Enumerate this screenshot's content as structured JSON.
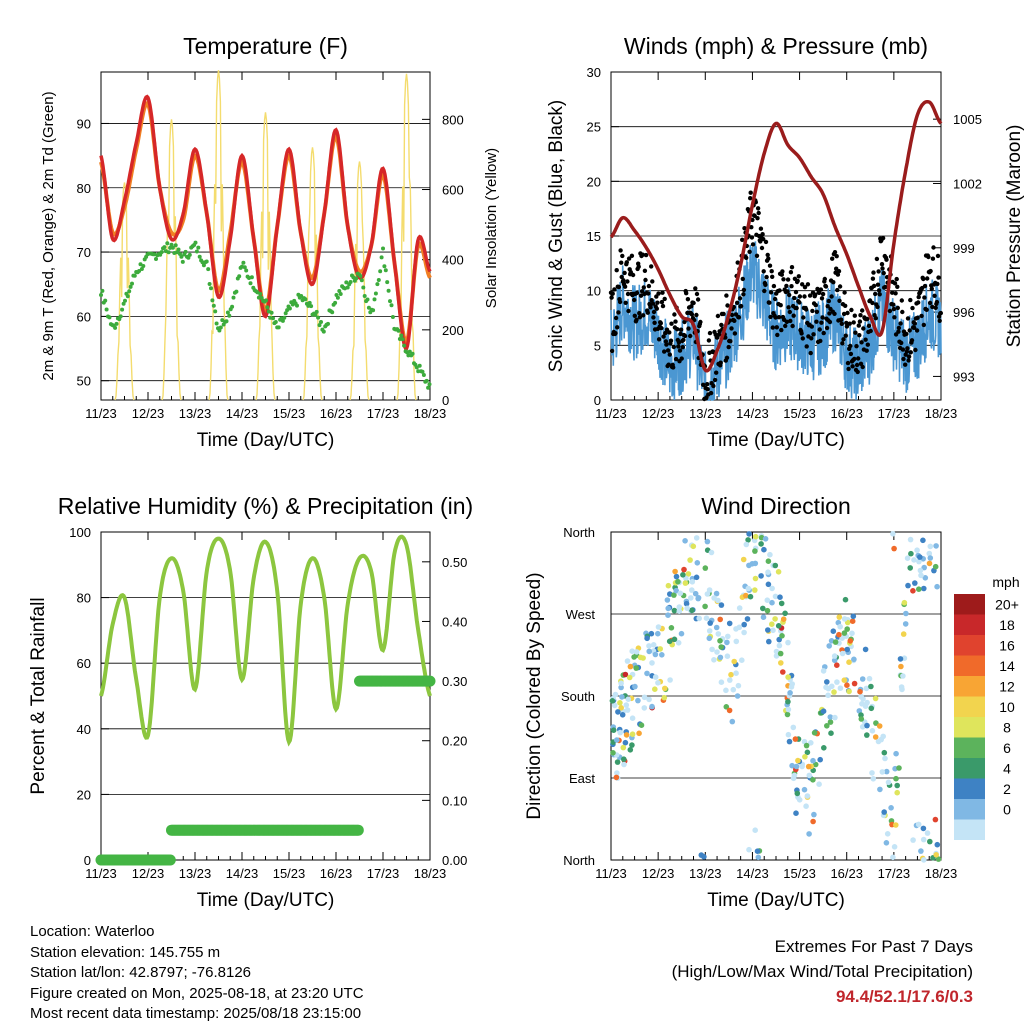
{
  "colors": {
    "temp_2m": "#d62728",
    "temp_9m": "#f07f23",
    "dewpoint": "#3cab3c",
    "insolation": "#f4dc6e",
    "wind_sonic": "#4b97d2",
    "wind_gust": "#000000",
    "pressure": "#9a1c1c",
    "rh": "#8cc63f",
    "precip": "#44b544"
  },
  "x_ticks": [
    "11/23",
    "12/23",
    "13/23",
    "14/23",
    "15/23",
    "16/23",
    "17/23",
    "18/23"
  ],
  "chart_data": [
    {
      "type": "line",
      "title": "Temperature (F)",
      "xlabel": "Time (Day/UTC)",
      "ylabel": "2m & 9m T (Red, Orange) & 2m Td (Green)",
      "y2label": "Solar Insolation (Yellow)",
      "ylim": [
        47,
        98
      ],
      "yticks": [
        50,
        60,
        70,
        80,
        90
      ],
      "y2lim": [
        0,
        935
      ],
      "y2ticks": [
        0,
        200,
        400,
        600,
        800
      ],
      "x": [
        11.0,
        11.25,
        11.5,
        11.75,
        12.0,
        12.25,
        12.5,
        12.75,
        13.0,
        13.25,
        13.5,
        13.75,
        14.0,
        14.25,
        14.5,
        14.75,
        15.0,
        15.25,
        15.5,
        15.75,
        16.0,
        16.25,
        16.5,
        16.75,
        17.0,
        17.25,
        17.5,
        17.75,
        18.0
      ],
      "series": [
        {
          "name": "2m T",
          "values": [
            85,
            72,
            78,
            87,
            94,
            80,
            72,
            76,
            86,
            76,
            63,
            72,
            85,
            72,
            60,
            74,
            86,
            73,
            65,
            76,
            89,
            74,
            66,
            71,
            83,
            68,
            55,
            72,
            67
          ]
        },
        {
          "name": "9m T",
          "values": [
            84,
            73,
            77,
            86,
            93,
            80,
            73,
            75,
            85,
            76,
            64,
            73,
            84,
            72,
            61,
            74,
            85,
            73,
            66,
            76,
            88,
            74,
            67,
            71,
            82,
            68,
            56,
            71,
            66
          ]
        },
        {
          "name": "2m Td",
          "values": [
            64,
            58,
            62,
            67,
            69,
            70,
            71,
            69,
            71,
            68,
            58,
            61,
            68,
            65,
            62,
            58,
            61,
            63,
            61,
            58,
            63,
            65,
            67,
            60,
            70,
            58,
            55,
            52,
            49
          ]
        },
        {
          "name": "Solar Insolation",
          "values": [
            0,
            0,
            620,
            0,
            0,
            0,
            800,
            0,
            0,
            0,
            940,
            0,
            0,
            0,
            820,
            0,
            0,
            0,
            720,
            0,
            0,
            0,
            680,
            0,
            0,
            0,
            930,
            0,
            0
          ]
        }
      ]
    },
    {
      "type": "line",
      "title": "Winds (mph) & Pressure (mb)",
      "xlabel": "Time (Day/UTC)",
      "ylabel": "Sonic Wind & Gust (Blue, Black)",
      "y2label": "Station Pressure (Maroon)",
      "ylim": [
        0,
        30
      ],
      "yticks": [
        0,
        5,
        10,
        15,
        20,
        25,
        30
      ],
      "y2lim": [
        991.9,
        1007.2
      ],
      "y2ticks": [
        993,
        996,
        999,
        1002,
        1005
      ],
      "x": [
        11.0,
        11.25,
        11.5,
        11.75,
        12.0,
        12.25,
        12.5,
        12.75,
        13.0,
        13.25,
        13.5,
        13.75,
        14.0,
        14.25,
        14.5,
        14.75,
        15.0,
        15.25,
        15.5,
        15.75,
        16.0,
        16.25,
        16.5,
        16.75,
        17.0,
        17.25,
        17.5,
        17.75,
        18.0
      ],
      "series": [
        {
          "name": "Sonic Wind",
          "values": [
            5,
            9,
            7,
            8,
            6,
            3,
            4,
            6,
            1,
            3,
            5,
            8,
            12,
            9,
            6,
            7,
            6,
            5,
            6,
            8,
            4,
            3,
            5,
            9,
            6,
            4,
            5,
            8,
            7
          ]
        },
        {
          "name": "Gust",
          "values": [
            7,
            12,
            10,
            11,
            8,
            5,
            6,
            9,
            2,
            5,
            7,
            11,
            17,
            13,
            8,
            10,
            9,
            7,
            8,
            11,
            6,
            5,
            7,
            14,
            9,
            6,
            7,
            12,
            10
          ]
        },
        {
          "name": "Station Pressure",
          "values": [
            999.5,
            1000.4,
            999.8,
            999.0,
            998.0,
            996.8,
            995.8,
            995.4,
            993.3,
            994.2,
            995.9,
            998.2,
            1001.0,
            1003.4,
            1004.8,
            1003.8,
            1003.2,
            1002.3,
            1001.5,
            1000.0,
            998.7,
            997.2,
            995.8,
            995.1,
            999.2,
            1002.6,
            1005.2,
            1005.8,
            1004.8
          ]
        }
      ]
    },
    {
      "type": "line",
      "title": "Relative Humidity (%) & Precipitation (in)",
      "xlabel": "Time (Day/UTC)",
      "ylabel": "Percent & Total Rainfall",
      "ylim": [
        0,
        100
      ],
      "yticks": [
        0,
        20,
        40,
        60,
        80,
        100
      ],
      "y2lim": [
        0,
        0.55
      ],
      "y2ticks": [
        "0.00",
        "0.10",
        "0.20",
        "0.30",
        "0.40",
        "0.50"
      ],
      "x": [
        11.0,
        11.25,
        11.5,
        11.75,
        12.0,
        12.25,
        12.5,
        12.75,
        13.0,
        13.25,
        13.5,
        13.75,
        14.0,
        14.25,
        14.5,
        14.75,
        15.0,
        15.25,
        15.5,
        15.75,
        16.0,
        16.25,
        16.5,
        16.75,
        17.0,
        17.25,
        17.5,
        17.75,
        18.0
      ],
      "series": [
        {
          "name": "Relative Humidity",
          "values": [
            50,
            72,
            80,
            55,
            38,
            80,
            92,
            82,
            52,
            88,
            98,
            88,
            55,
            86,
            97,
            82,
            36,
            78,
            92,
            80,
            46,
            78,
            92,
            88,
            64,
            94,
            96,
            70,
            50
          ]
        },
        {
          "name": "Total Precipitation",
          "values": [
            0,
            0,
            0,
            0,
            0,
            0,
            0,
            0.05,
            0.05,
            0.05,
            0.05,
            0.05,
            0.05,
            0.05,
            0.05,
            0.05,
            0.05,
            0.05,
            0.05,
            0.05,
            0.05,
            0.05,
            0.05,
            0.3,
            0.3,
            0.3,
            0.3,
            0.3,
            0.3
          ]
        }
      ]
    },
    {
      "type": "scatter",
      "title": "Wind Direction",
      "xlabel": "Time (Day/UTC)",
      "ylabel": "Direction (Colored By Speed)",
      "ylim": [
        0,
        360
      ],
      "yticks": [
        "North",
        "East",
        "South",
        "West",
        "North"
      ],
      "colorbar": {
        "title": "mph",
        "labels": [
          "20+",
          "18",
          "16",
          "14",
          "12",
          "10",
          "8",
          "6",
          "4",
          "2",
          "0"
        ],
        "colors": [
          "#9e1b1b",
          "#c8282a",
          "#e0432e",
          "#f06a2a",
          "#f8a534",
          "#f2d44e",
          "#dfe55c",
          "#5cb35c",
          "#3a9a6a",
          "#3e82c4",
          "#80b8e4",
          "#c4e4f6"
        ]
      },
      "x": [
        11.0,
        11.3,
        11.6,
        12.0,
        12.3,
        12.6,
        13.0,
        13.3,
        13.6,
        14.0,
        14.3,
        14.6,
        15.0,
        15.3,
        15.6,
        16.0,
        16.3,
        16.6,
        17.0,
        17.3,
        17.6,
        18.0
      ],
      "values": [
        130,
        160,
        190,
        210,
        260,
        300,
        320,
        240,
        200,
        350,
        300,
        260,
        70,
        90,
        180,
        240,
        200,
        130,
        20,
        340,
        350,
        355
      ]
    }
  ],
  "footer": {
    "location": "Location: Waterloo",
    "elevation": "Station elevation: 145.755 m",
    "latlon": "Station lat/lon: 42.8797; -76.8126",
    "created": "Figure created on Mon, 2025-08-18, at 23:20 UTC",
    "timestamp": "Most recent data timestamp: 2025/08/18 23:15:00",
    "extremes_title": "Extremes For Past 7 Days",
    "extremes_sub": "(High/Low/Max Wind/Total Precipitation)",
    "extremes_values": "94.4/52.1/17.6/0.3"
  }
}
